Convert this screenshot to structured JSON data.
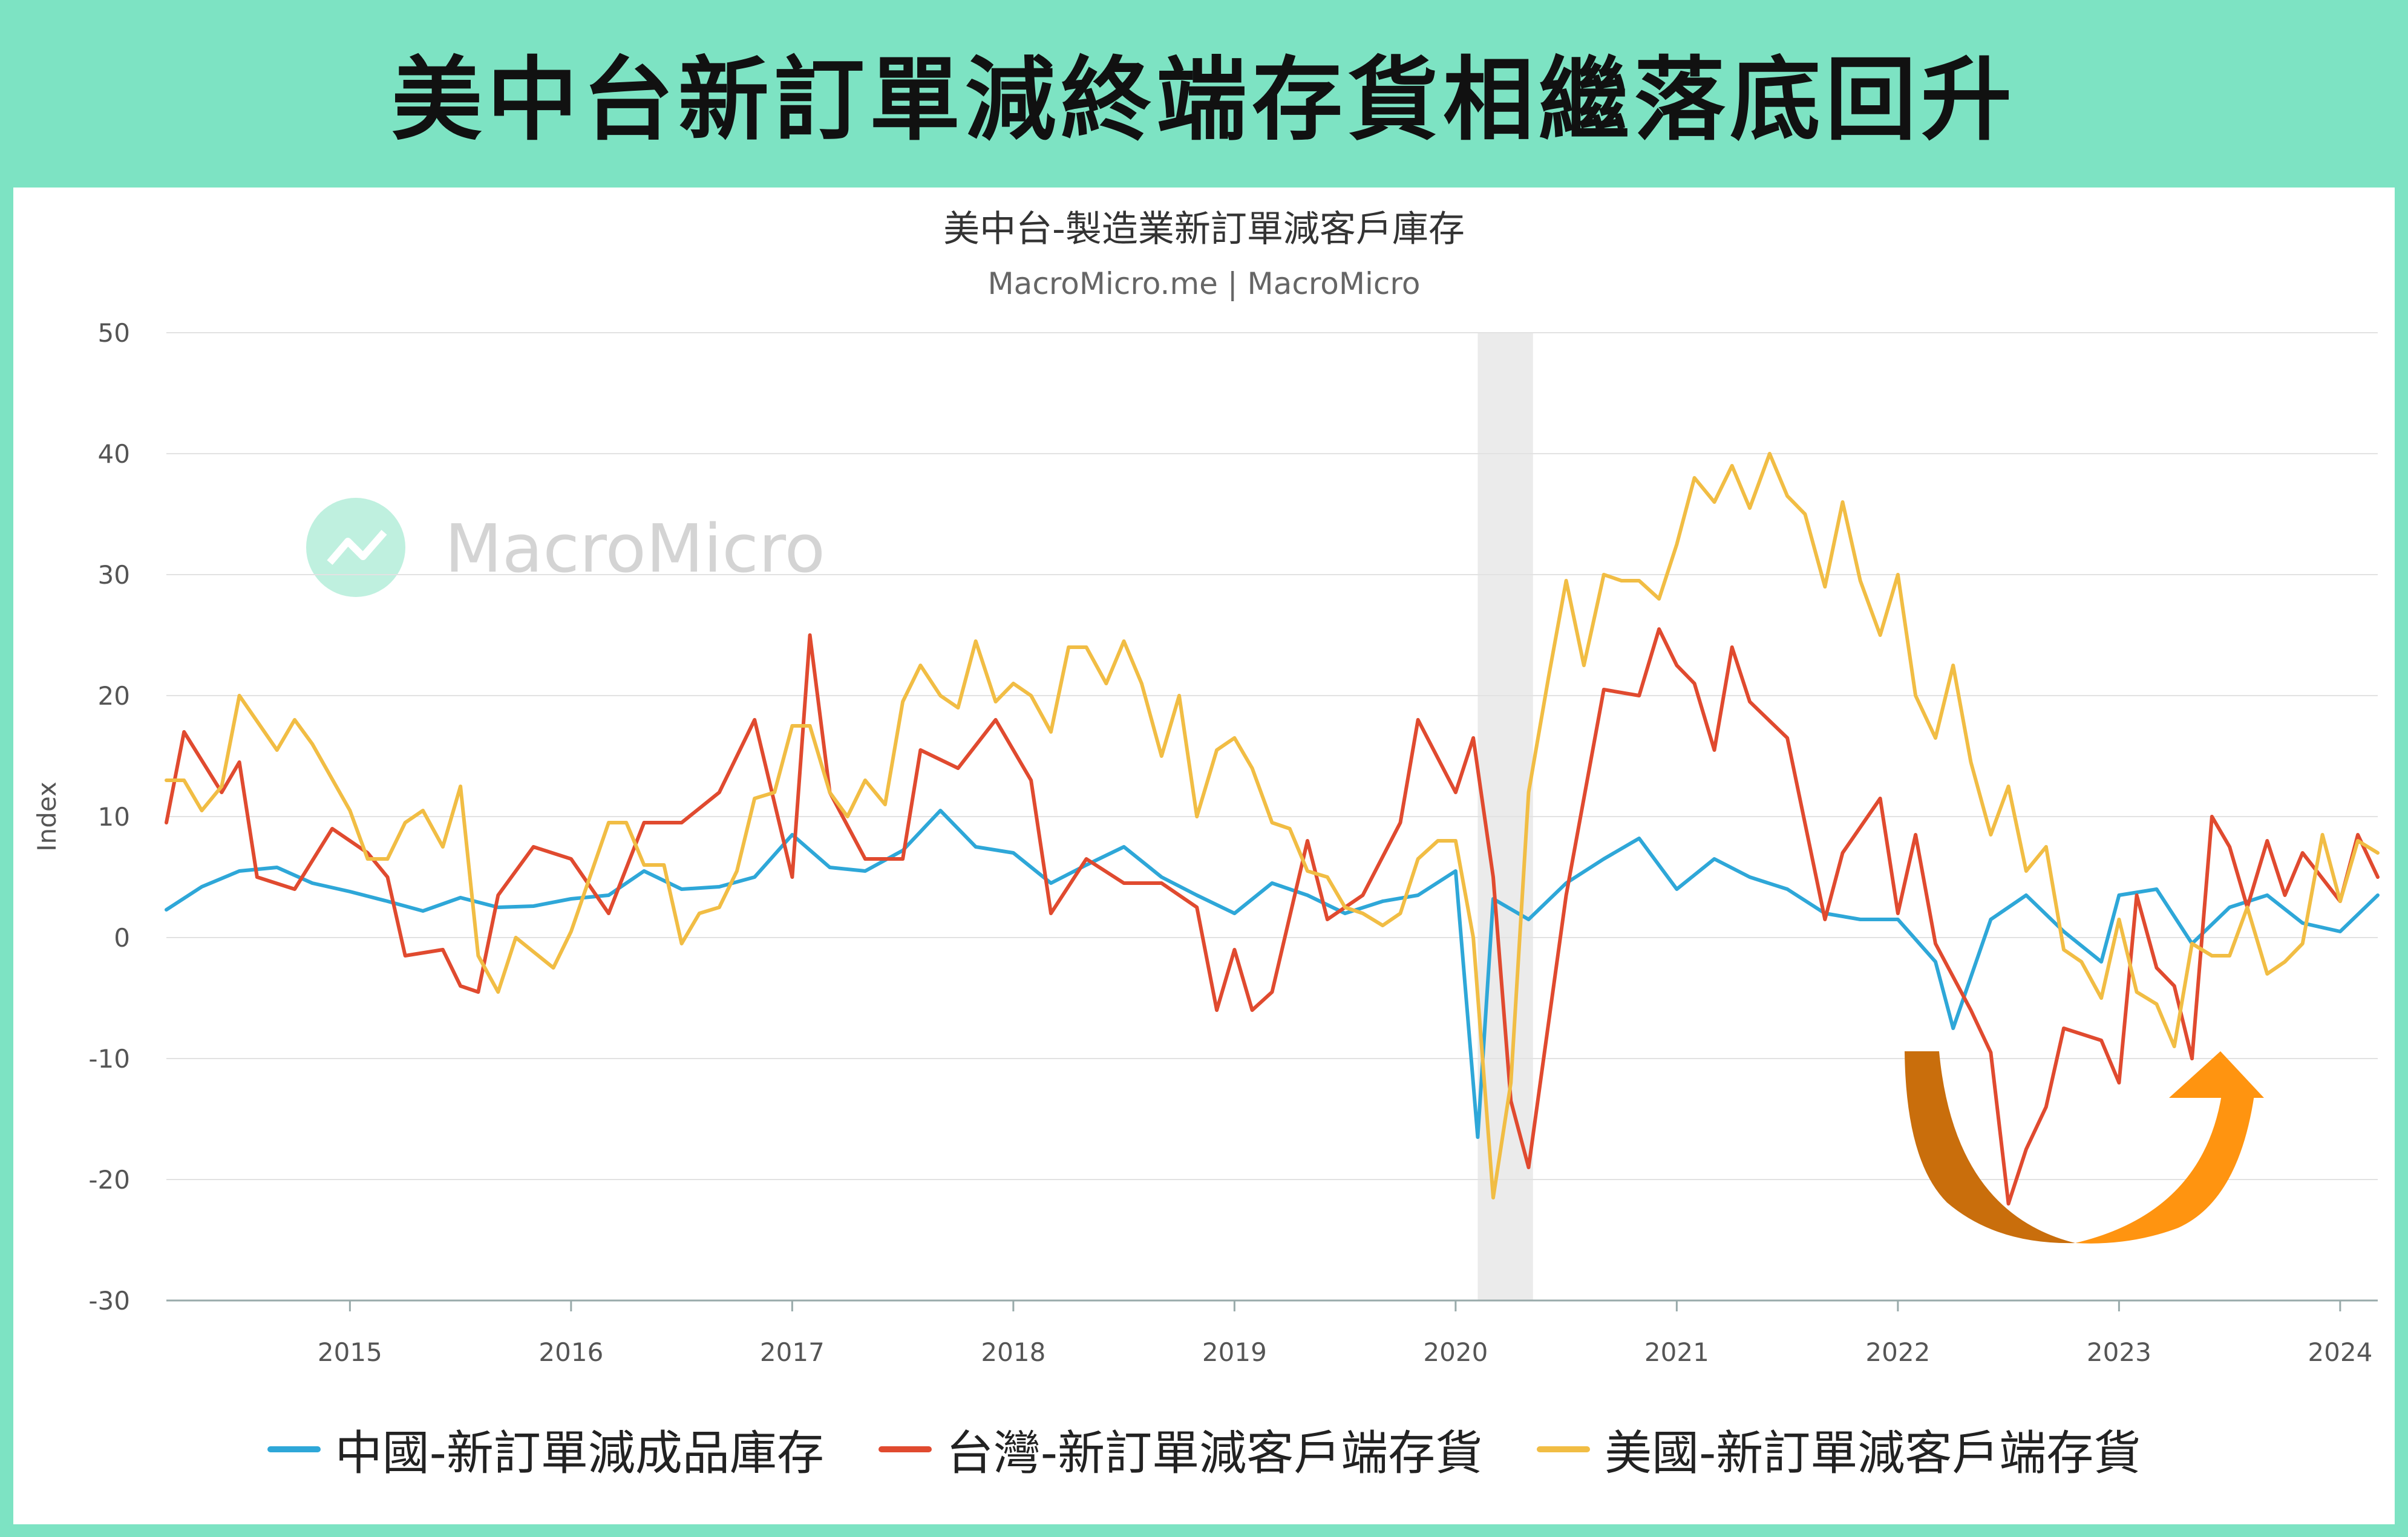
{
  "banner_title": "美中台新訂單減終端存貨相繼落底回升",
  "chart_data": {
    "type": "line",
    "title": "美中台-製造業新訂單減客戶庫存",
    "subtitle": "MacroMicro.me | MacroMicro",
    "watermark": "MacroMicro",
    "ylabel": "Index",
    "ylim": [
      -30,
      50
    ],
    "yticks": [
      50,
      40,
      30,
      20,
      10,
      0,
      -10,
      -20,
      -30
    ],
    "xlim": [
      2014.17,
      2024.17
    ],
    "xticks": [
      {
        "value": 2015,
        "label": "2015"
      },
      {
        "value": 2016,
        "label": "2016"
      },
      {
        "value": 2017,
        "label": "2017"
      },
      {
        "value": 2018,
        "label": "2018"
      },
      {
        "value": 2019,
        "label": "2019"
      },
      {
        "value": 2020,
        "label": "2020"
      },
      {
        "value": 2021,
        "label": "2021"
      },
      {
        "value": 2022,
        "label": "2022"
      },
      {
        "value": 2023,
        "label": "2023"
      },
      {
        "value": 2024,
        "label": "2024"
      }
    ],
    "shaded_region": [
      2020.1,
      2020.35
    ],
    "grid": "horizontal",
    "legend_position": "bottom",
    "annotation": "orange U-turn arrow, 2022-2023 trough",
    "series": [
      {
        "name": "中國-新訂單減成品庫存",
        "color": "#2ea7d8",
        "points": [
          [
            2014.17,
            2.3
          ],
          [
            2014.33,
            4.2
          ],
          [
            2014.5,
            5.5
          ],
          [
            2014.67,
            5.8
          ],
          [
            2014.83,
            4.5
          ],
          [
            2015.0,
            3.8
          ],
          [
            2015.17,
            3.0
          ],
          [
            2015.33,
            2.2
          ],
          [
            2015.5,
            3.3
          ],
          [
            2015.67,
            2.5
          ],
          [
            2015.83,
            2.6
          ],
          [
            2016.0,
            3.2
          ],
          [
            2016.17,
            3.5
          ],
          [
            2016.33,
            5.5
          ],
          [
            2016.5,
            4.0
          ],
          [
            2016.67,
            4.2
          ],
          [
            2016.83,
            5.0
          ],
          [
            2017.0,
            8.5
          ],
          [
            2017.17,
            5.8
          ],
          [
            2017.33,
            5.5
          ],
          [
            2017.5,
            7.2
          ],
          [
            2017.67,
            10.5
          ],
          [
            2017.83,
            7.5
          ],
          [
            2018.0,
            7.0
          ],
          [
            2018.17,
            4.5
          ],
          [
            2018.33,
            6.0
          ],
          [
            2018.5,
            7.5
          ],
          [
            2018.67,
            5.0
          ],
          [
            2018.83,
            3.5
          ],
          [
            2019.0,
            2.0
          ],
          [
            2019.17,
            4.5
          ],
          [
            2019.33,
            3.5
          ],
          [
            2019.5,
            2.0
          ],
          [
            2019.67,
            3.0
          ],
          [
            2019.83,
            3.5
          ],
          [
            2020.0,
            5.5
          ],
          [
            2020.1,
            -16.5
          ],
          [
            2020.17,
            3.2
          ],
          [
            2020.33,
            1.5
          ],
          [
            2020.5,
            4.5
          ],
          [
            2020.67,
            6.5
          ],
          [
            2020.83,
            8.2
          ],
          [
            2021.0,
            4.0
          ],
          [
            2021.17,
            6.5
          ],
          [
            2021.33,
            5.0
          ],
          [
            2021.5,
            4.0
          ],
          [
            2021.67,
            2.0
          ],
          [
            2021.83,
            1.5
          ],
          [
            2022.0,
            1.5
          ],
          [
            2022.17,
            -2.0
          ],
          [
            2022.25,
            -7.5
          ],
          [
            2022.42,
            1.5
          ],
          [
            2022.58,
            3.5
          ],
          [
            2022.75,
            0.5
          ],
          [
            2022.92,
            -2.0
          ],
          [
            2023.0,
            3.5
          ],
          [
            2023.17,
            4.0
          ],
          [
            2023.33,
            -0.5
          ],
          [
            2023.5,
            2.5
          ],
          [
            2023.67,
            3.5
          ],
          [
            2023.83,
            1.2
          ],
          [
            2024.0,
            0.5
          ],
          [
            2024.17,
            3.5
          ]
        ]
      },
      {
        "name": "台灣-新訂單減客戶端存貨",
        "color": "#e04a2f",
        "points": [
          [
            2014.17,
            9.5
          ],
          [
            2014.25,
            17.0
          ],
          [
            2014.42,
            12.0
          ],
          [
            2014.5,
            14.5
          ],
          [
            2014.58,
            5.0
          ],
          [
            2014.75,
            4.0
          ],
          [
            2014.92,
            9.0
          ],
          [
            2015.08,
            7.0
          ],
          [
            2015.17,
            5.0
          ],
          [
            2015.25,
            -1.5
          ],
          [
            2015.42,
            -1.0
          ],
          [
            2015.5,
            -4.0
          ],
          [
            2015.58,
            -4.5
          ],
          [
            2015.67,
            3.5
          ],
          [
            2015.83,
            7.5
          ],
          [
            2016.0,
            6.5
          ],
          [
            2016.17,
            2.0
          ],
          [
            2016.33,
            9.5
          ],
          [
            2016.5,
            9.5
          ],
          [
            2016.67,
            12.0
          ],
          [
            2016.83,
            18.0
          ],
          [
            2017.0,
            5.0
          ],
          [
            2017.08,
            25.0
          ],
          [
            2017.17,
            12.0
          ],
          [
            2017.33,
            6.5
          ],
          [
            2017.5,
            6.5
          ],
          [
            2017.58,
            15.5
          ],
          [
            2017.75,
            14.0
          ],
          [
            2017.92,
            18.0
          ],
          [
            2018.08,
            13.0
          ],
          [
            2018.17,
            2.0
          ],
          [
            2018.33,
            6.5
          ],
          [
            2018.5,
            4.5
          ],
          [
            2018.67,
            4.5
          ],
          [
            2018.83,
            2.5
          ],
          [
            2018.92,
            -6.0
          ],
          [
            2019.0,
            -1.0
          ],
          [
            2019.08,
            -6.0
          ],
          [
            2019.17,
            -4.5
          ],
          [
            2019.33,
            8.0
          ],
          [
            2019.42,
            1.5
          ],
          [
            2019.58,
            3.5
          ],
          [
            2019.75,
            9.5
          ],
          [
            2019.83,
            18.0
          ],
          [
            2020.0,
            12.0
          ],
          [
            2020.08,
            16.5
          ],
          [
            2020.17,
            5.0
          ],
          [
            2020.25,
            -13.5
          ],
          [
            2020.33,
            -19.0
          ],
          [
            2020.5,
            3.5
          ],
          [
            2020.67,
            20.5
          ],
          [
            2020.83,
            20.0
          ],
          [
            2020.92,
            25.5
          ],
          [
            2021.0,
            22.5
          ],
          [
            2021.08,
            21.0
          ],
          [
            2021.17,
            15.5
          ],
          [
            2021.25,
            24.0
          ],
          [
            2021.33,
            19.5
          ],
          [
            2021.5,
            16.5
          ],
          [
            2021.67,
            1.5
          ],
          [
            2021.75,
            7.0
          ],
          [
            2021.92,
            11.5
          ],
          [
            2022.0,
            2.0
          ],
          [
            2022.08,
            8.5
          ],
          [
            2022.17,
            -0.5
          ],
          [
            2022.33,
            -6.0
          ],
          [
            2022.42,
            -9.5
          ],
          [
            2022.5,
            -22.0
          ],
          [
            2022.58,
            -17.5
          ],
          [
            2022.67,
            -14.0
          ],
          [
            2022.75,
            -7.5
          ],
          [
            2022.92,
            -8.5
          ],
          [
            2023.0,
            -12.0
          ],
          [
            2023.08,
            3.5
          ],
          [
            2023.17,
            -2.5
          ],
          [
            2023.25,
            -4.0
          ],
          [
            2023.33,
            -10.0
          ],
          [
            2023.42,
            10.0
          ],
          [
            2023.5,
            7.5
          ],
          [
            2023.58,
            2.5
          ],
          [
            2023.67,
            8.0
          ],
          [
            2023.75,
            3.5
          ],
          [
            2023.83,
            7.0
          ],
          [
            2024.0,
            3.0
          ],
          [
            2024.08,
            8.5
          ],
          [
            2024.17,
            5.0
          ]
        ]
      },
      {
        "name": "美國-新訂單減客戶端存貨",
        "color": "#f1bd44",
        "points": [
          [
            2014.17,
            13.0
          ],
          [
            2014.25,
            13.0
          ],
          [
            2014.33,
            10.5
          ],
          [
            2014.42,
            12.5
          ],
          [
            2014.5,
            20.0
          ],
          [
            2014.67,
            15.5
          ],
          [
            2014.75,
            18.0
          ],
          [
            2014.83,
            16.0
          ],
          [
            2015.0,
            10.5
          ],
          [
            2015.08,
            6.5
          ],
          [
            2015.17,
            6.5
          ],
          [
            2015.25,
            9.5
          ],
          [
            2015.33,
            10.5
          ],
          [
            2015.42,
            7.5
          ],
          [
            2015.5,
            12.5
          ],
          [
            2015.58,
            -1.5
          ],
          [
            2015.67,
            -4.5
          ],
          [
            2015.75,
            0.0
          ],
          [
            2015.92,
            -2.5
          ],
          [
            2016.0,
            0.5
          ],
          [
            2016.17,
            9.5
          ],
          [
            2016.25,
            9.5
          ],
          [
            2016.33,
            6.0
          ],
          [
            2016.42,
            6.0
          ],
          [
            2016.5,
            -0.5
          ],
          [
            2016.58,
            2.0
          ],
          [
            2016.67,
            2.5
          ],
          [
            2016.75,
            5.5
          ],
          [
            2016.83,
            11.5
          ],
          [
            2016.92,
            12.0
          ],
          [
            2017.0,
            17.5
          ],
          [
            2017.08,
            17.5
          ],
          [
            2017.17,
            12.0
          ],
          [
            2017.25,
            10.0
          ],
          [
            2017.33,
            13.0
          ],
          [
            2017.42,
            11.0
          ],
          [
            2017.5,
            19.5
          ],
          [
            2017.58,
            22.5
          ],
          [
            2017.67,
            20.0
          ],
          [
            2017.75,
            19.0
          ],
          [
            2017.83,
            24.5
          ],
          [
            2017.92,
            19.5
          ],
          [
            2018.0,
            21.0
          ],
          [
            2018.08,
            20.0
          ],
          [
            2018.17,
            17.0
          ],
          [
            2018.25,
            24.0
          ],
          [
            2018.33,
            24.0
          ],
          [
            2018.42,
            21.0
          ],
          [
            2018.5,
            24.5
          ],
          [
            2018.58,
            21.0
          ],
          [
            2018.67,
            15.0
          ],
          [
            2018.75,
            20.0
          ],
          [
            2018.83,
            10.0
          ],
          [
            2018.92,
            15.5
          ],
          [
            2019.0,
            16.5
          ],
          [
            2019.08,
            14.0
          ],
          [
            2019.17,
            9.5
          ],
          [
            2019.25,
            9.0
          ],
          [
            2019.33,
            5.5
          ],
          [
            2019.42,
            5.0
          ],
          [
            2019.5,
            2.5
          ],
          [
            2019.58,
            2.0
          ],
          [
            2019.67,
            1.0
          ],
          [
            2019.75,
            2.0
          ],
          [
            2019.83,
            6.5
          ],
          [
            2019.92,
            8.0
          ],
          [
            2020.0,
            8.0
          ],
          [
            2020.08,
            0.0
          ],
          [
            2020.17,
            -21.5
          ],
          [
            2020.25,
            -12.0
          ],
          [
            2020.33,
            12.0
          ],
          [
            2020.42,
            21.5
          ],
          [
            2020.5,
            29.5
          ],
          [
            2020.58,
            22.5
          ],
          [
            2020.67,
            30.0
          ],
          [
            2020.75,
            29.5
          ],
          [
            2020.83,
            29.5
          ],
          [
            2020.92,
            28.0
          ],
          [
            2021.0,
            32.5
          ],
          [
            2021.08,
            38.0
          ],
          [
            2021.17,
            36.0
          ],
          [
            2021.25,
            39.0
          ],
          [
            2021.33,
            35.5
          ],
          [
            2021.42,
            40.0
          ],
          [
            2021.5,
            36.5
          ],
          [
            2021.58,
            35.0
          ],
          [
            2021.67,
            29.0
          ],
          [
            2021.75,
            36.0
          ],
          [
            2021.83,
            29.5
          ],
          [
            2021.92,
            25.0
          ],
          [
            2022.0,
            30.0
          ],
          [
            2022.08,
            20.0
          ],
          [
            2022.17,
            16.5
          ],
          [
            2022.25,
            22.5
          ],
          [
            2022.33,
            14.5
          ],
          [
            2022.42,
            8.5
          ],
          [
            2022.5,
            12.5
          ],
          [
            2022.58,
            5.5
          ],
          [
            2022.67,
            7.5
          ],
          [
            2022.75,
            -1.0
          ],
          [
            2022.83,
            -2.0
          ],
          [
            2022.92,
            -5.0
          ],
          [
            2023.0,
            1.5
          ],
          [
            2023.08,
            -4.5
          ],
          [
            2023.17,
            -5.5
          ],
          [
            2023.25,
            -9.0
          ],
          [
            2023.33,
            -0.5
          ],
          [
            2023.42,
            -1.5
          ],
          [
            2023.5,
            -1.5
          ],
          [
            2023.58,
            2.5
          ],
          [
            2023.67,
            -3.0
          ],
          [
            2023.75,
            -2.0
          ],
          [
            2023.83,
            -0.5
          ],
          [
            2023.92,
            8.5
          ],
          [
            2024.0,
            3.0
          ],
          [
            2024.08,
            8.0
          ],
          [
            2024.17,
            7.0
          ]
        ]
      }
    ]
  }
}
